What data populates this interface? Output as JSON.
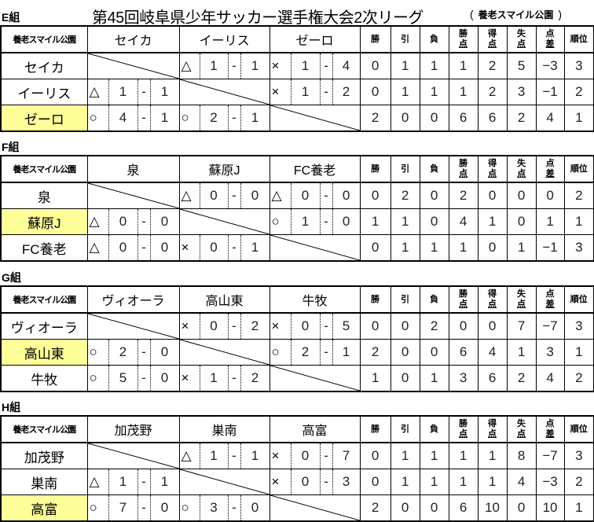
{
  "title": "第45回岐阜県少年サッカー選手権大会2次リーグ",
  "venue": {
    "open": "(",
    "name": "養老スマイル公園",
    "close": ")"
  },
  "stat_headers": [
    {
      "l1": "勝",
      "l2": ""
    },
    {
      "l1": "引",
      "l2": ""
    },
    {
      "l1": "負",
      "l2": ""
    },
    {
      "l1": "勝",
      "l2": "点"
    },
    {
      "l1": "得",
      "l2": "点"
    },
    {
      "l1": "失",
      "l2": "点"
    },
    {
      "l1": "点",
      "l2": "差"
    },
    {
      "l1": "順位",
      "l2": ""
    }
  ],
  "highlight_color": "#ffff99",
  "groups": [
    {
      "label": "E組",
      "corner": "養老スマイル公園",
      "teams": [
        "セイカ",
        "イーリス",
        "ゼーロ"
      ],
      "rows": [
        {
          "team": "セイカ",
          "highlight": false,
          "results": [
            null,
            {
              "mark": "△",
              "for": "1",
              "dash": "-",
              "against": "1"
            },
            {
              "mark": "×",
              "for": "1",
              "dash": "-",
              "against": "4"
            }
          ],
          "stats": [
            "0",
            "1",
            "1",
            "1",
            "2",
            "5",
            "−3",
            "3"
          ]
        },
        {
          "team": "イーリス",
          "highlight": false,
          "results": [
            {
              "mark": "△",
              "for": "1",
              "dash": "-",
              "against": "1"
            },
            null,
            {
              "mark": "×",
              "for": "1",
              "dash": "-",
              "against": "2"
            }
          ],
          "stats": [
            "0",
            "1",
            "1",
            "1",
            "2",
            "3",
            "−1",
            "2"
          ]
        },
        {
          "team": "ゼーロ",
          "highlight": true,
          "results": [
            {
              "mark": "○",
              "for": "4",
              "dash": "-",
              "against": "1"
            },
            {
              "mark": "○",
              "for": "2",
              "dash": "-",
              "against": "1"
            },
            null
          ],
          "stats": [
            "2",
            "0",
            "0",
            "6",
            "6",
            "2",
            "4",
            "1"
          ]
        }
      ]
    },
    {
      "label": "F組",
      "corner": "養老スマイル公園",
      "teams": [
        "泉",
        "蘇原J",
        "FC養老"
      ],
      "rows": [
        {
          "team": "泉",
          "highlight": false,
          "results": [
            null,
            {
              "mark": "△",
              "for": "0",
              "dash": "-",
              "against": "0"
            },
            {
              "mark": "△",
              "for": "0",
              "dash": "-",
              "against": "0"
            }
          ],
          "stats": [
            "0",
            "2",
            "0",
            "2",
            "0",
            "0",
            "0",
            "2"
          ]
        },
        {
          "team": "蘇原J",
          "highlight": true,
          "results": [
            {
              "mark": "△",
              "for": "0",
              "dash": "-",
              "against": "0"
            },
            null,
            {
              "mark": "○",
              "for": "1",
              "dash": "-",
              "against": "0"
            }
          ],
          "stats": [
            "1",
            "1",
            "0",
            "4",
            "1",
            "0",
            "1",
            "1"
          ]
        },
        {
          "team": "FC養老",
          "highlight": false,
          "results": [
            {
              "mark": "△",
              "for": "0",
              "dash": "-",
              "against": "0"
            },
            {
              "mark": "×",
              "for": "0",
              "dash": "-",
              "against": "1"
            },
            null
          ],
          "stats": [
            "0",
            "1",
            "1",
            "1",
            "0",
            "1",
            "−1",
            "3"
          ]
        }
      ]
    },
    {
      "label": "G組",
      "corner": "養老スマイル公園",
      "teams": [
        "ヴィオーラ",
        "高山東",
        "牛牧"
      ],
      "rows": [
        {
          "team": "ヴィオーラ",
          "highlight": false,
          "results": [
            null,
            {
              "mark": "×",
              "for": "0",
              "dash": "-",
              "against": "2"
            },
            {
              "mark": "×",
              "for": "0",
              "dash": "-",
              "against": "5"
            }
          ],
          "stats": [
            "0",
            "0",
            "2",
            "0",
            "0",
            "7",
            "−7",
            "3"
          ]
        },
        {
          "team": "高山東",
          "highlight": true,
          "results": [
            {
              "mark": "○",
              "for": "2",
              "dash": "-",
              "against": "0"
            },
            null,
            {
              "mark": "○",
              "for": "2",
              "dash": "-",
              "against": "1"
            }
          ],
          "stats": [
            "2",
            "0",
            "0",
            "6",
            "4",
            "1",
            "3",
            "1"
          ]
        },
        {
          "team": "牛牧",
          "highlight": false,
          "results": [
            {
              "mark": "○",
              "for": "5",
              "dash": "-",
              "against": "0"
            },
            {
              "mark": "×",
              "for": "1",
              "dash": "-",
              "against": "2"
            },
            null
          ],
          "stats": [
            "1",
            "0",
            "1",
            "3",
            "6",
            "2",
            "4",
            "2"
          ]
        }
      ]
    },
    {
      "label": "H組",
      "corner": "養老スマイル公園",
      "teams": [
        "加茂野",
        "巣南",
        "高富"
      ],
      "rows": [
        {
          "team": "加茂野",
          "highlight": false,
          "results": [
            null,
            {
              "mark": "△",
              "for": "1",
              "dash": "-",
              "against": "1"
            },
            {
              "mark": "×",
              "for": "0",
              "dash": "-",
              "against": "7"
            }
          ],
          "stats": [
            "0",
            "1",
            "1",
            "1",
            "1",
            "8",
            "−7",
            "3"
          ]
        },
        {
          "team": "巣南",
          "highlight": false,
          "results": [
            {
              "mark": "△",
              "for": "1",
              "dash": "-",
              "against": "1"
            },
            null,
            {
              "mark": "×",
              "for": "0",
              "dash": "-",
              "against": "3"
            }
          ],
          "stats": [
            "0",
            "1",
            "1",
            "1",
            "1",
            "4",
            "−3",
            "2"
          ]
        },
        {
          "team": "高富",
          "highlight": true,
          "results": [
            {
              "mark": "○",
              "for": "7",
              "dash": "-",
              "against": "0"
            },
            {
              "mark": "○",
              "for": "3",
              "dash": "-",
              "against": "0"
            },
            null
          ],
          "stats": [
            "2",
            "0",
            "0",
            "6",
            "10",
            "0",
            "10",
            "1"
          ]
        }
      ]
    }
  ]
}
